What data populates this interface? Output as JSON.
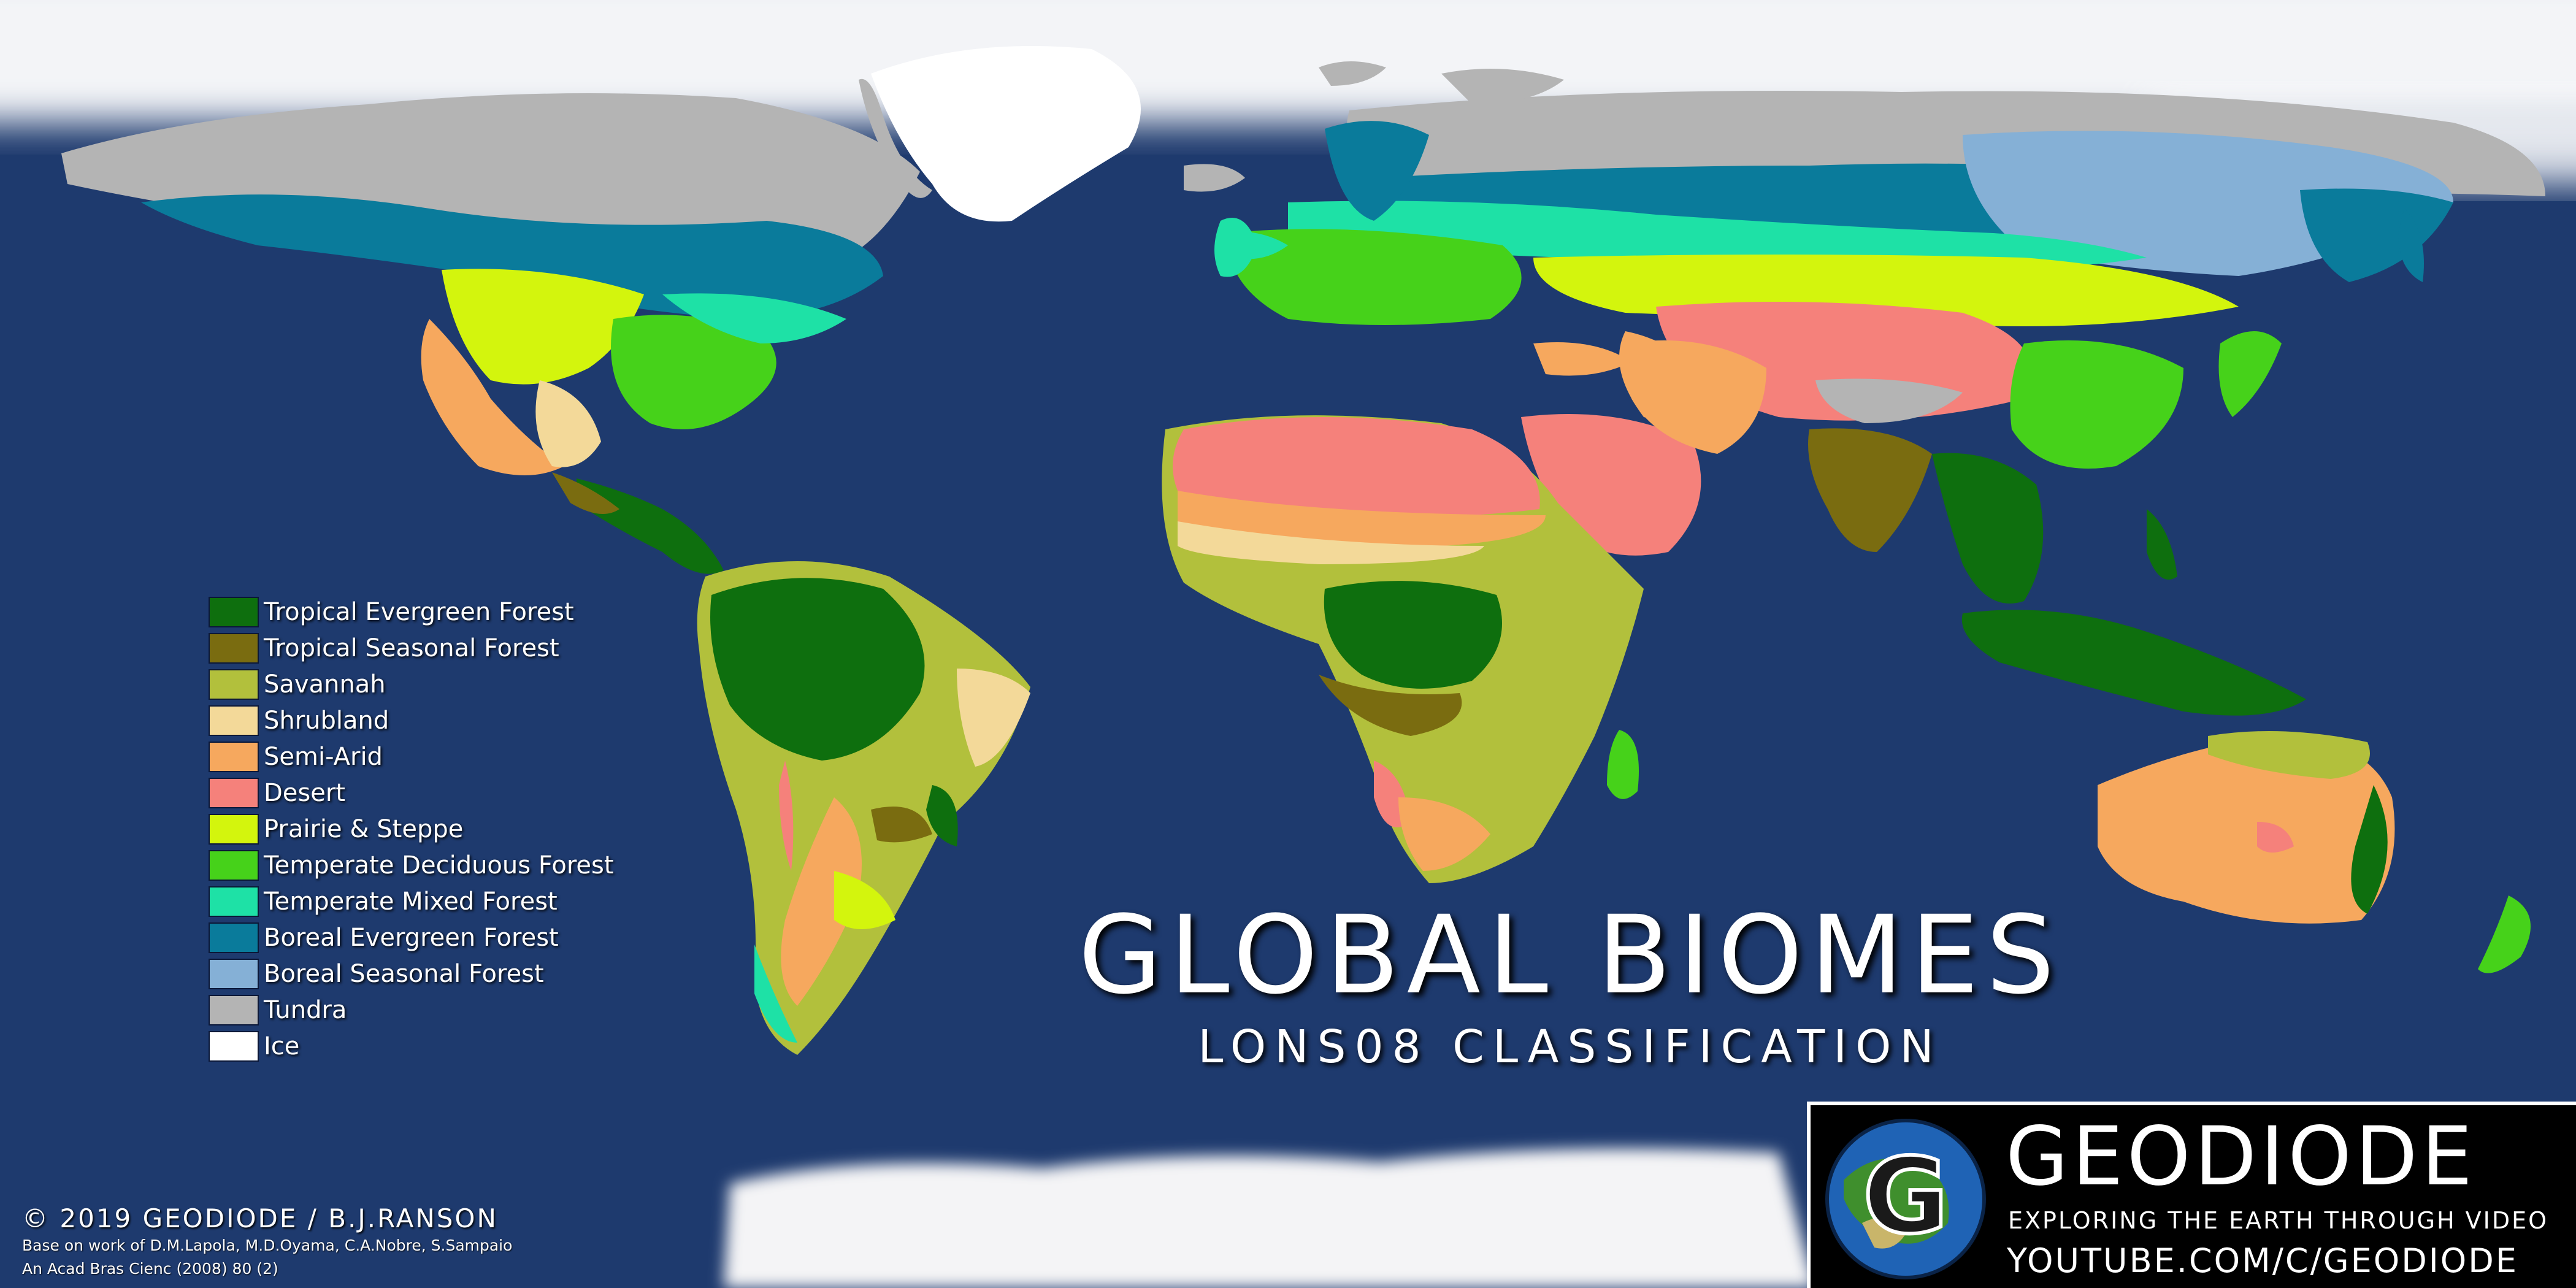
{
  "title": "GLOBAL BIOMES",
  "subtitle": "LONS08 CLASSIFICATION",
  "legend": [
    {
      "label": "Tropical Evergreen Forest",
      "color": "#0e6f0e"
    },
    {
      "label": "Tropical Seasonal Forest",
      "color": "#7a6c10"
    },
    {
      "label": "Savannah",
      "color": "#b2c03c"
    },
    {
      "label": "Shrubland",
      "color": "#f3d999"
    },
    {
      "label": "Semi-Arid",
      "color": "#f6a85e"
    },
    {
      "label": "Desert",
      "color": "#f5817b"
    },
    {
      "label": "Prairie & Steppe",
      "color": "#d3f50d"
    },
    {
      "label": "Temperate Deciduous Forest",
      "color": "#46d21a"
    },
    {
      "label": "Temperate Mixed Forest",
      "color": "#1ee1a6"
    },
    {
      "label": "Boreal Evergreen Forest",
      "color": "#0a7b9b"
    },
    {
      "label": "Boreal Seasonal Forest",
      "color": "#85b0d6"
    },
    {
      "label": "Tundra",
      "color": "#b4b4b4"
    },
    {
      "label": "Ice",
      "color": "#ffffff"
    }
  ],
  "ocean_color": "#1e3a6e",
  "copyright": "© 2019 GEODIODE / B.J.RANSON",
  "credit_line1": "Base on work of D.M.Lapola, M.D.Oyama, C.A.Nobre, S.Sampaio",
  "credit_line2": "An Acad Bras Cienc (2008) 80 (2)",
  "brand": {
    "name": "GEODIODE",
    "tagline": "EXPLORING THE EARTH THROUGH VIDEO",
    "url": "YOUTUBE.COM/C/GEODIODE",
    "logo_letter": "G"
  }
}
